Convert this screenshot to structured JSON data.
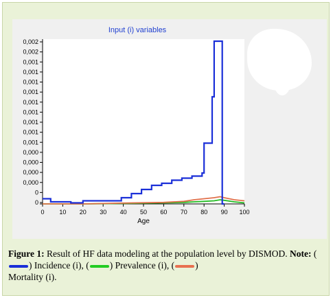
{
  "chart_data": {
    "type": "line",
    "title": "Input (i) variables",
    "xlabel": "Age",
    "ylabel": "",
    "xlim": [
      0,
      100
    ],
    "x_ticks": [
      "0",
      "10",
      "20",
      "30",
      "40",
      "50",
      "60",
      "70",
      "80",
      "90",
      "100"
    ],
    "y_ticks": [
      "0",
      "0",
      "0,000",
      "0,000",
      "0,000",
      "0,000",
      "0,001",
      "0,001",
      "0,001",
      "0,001",
      "0,001",
      "0,001",
      "0,001",
      "0,001",
      "0,001",
      "0,002",
      "0,002"
    ],
    "ylim": [
      0,
      0.0016
    ],
    "grid": false,
    "series": [
      {
        "color": "#1a2fd8",
        "x": [
          0,
          4,
          4,
          14,
          14,
          19,
          19,
          20,
          20,
          39,
          39,
          44,
          44,
          49,
          49,
          54,
          54,
          59,
          59,
          64,
          64,
          69,
          69,
          74,
          74,
          79,
          79,
          80,
          80,
          84,
          84,
          85,
          85,
          89,
          89,
          90,
          90
        ],
        "y": [
          5e-05,
          5e-05,
          2e-05,
          2e-05,
          1e-05,
          1e-05,
          1e-05,
          1e-05,
          3e-05,
          3e-05,
          6e-05,
          6e-05,
          0.0001,
          0.0001,
          0.00014,
          0.00014,
          0.00018,
          0.00018,
          0.0002,
          0.0002,
          0.00023,
          0.00023,
          0.00025,
          0.00025,
          0.00027,
          0.00027,
          0.0003,
          0.0003,
          0.00059,
          0.00059,
          0.00104,
          0.00104,
          0.00158,
          0.00158,
          0.0,
          0.0,
          0.0
        ]
      },
      {
        "color": "#22bb22",
        "x": [
          0,
          20,
          40,
          60,
          70,
          75,
          80,
          85,
          88,
          90,
          95,
          100
        ],
        "y": [
          0.0,
          0.0,
          5e-06,
          1e-05,
          1.5e-05,
          2e-05,
          2.5e-05,
          3e-05,
          4e-05,
          3.5e-05,
          2e-05,
          1e-05
        ]
      },
      {
        "color": "#e0704a",
        "x": [
          0,
          20,
          40,
          60,
          70,
          75,
          80,
          85,
          88,
          90,
          95,
          100
        ],
        "y": [
          0.0,
          0.0,
          8e-06,
          1.5e-05,
          2.5e-05,
          4e-05,
          5e-05,
          6e-05,
          7e-05,
          6e-05,
          4e-05,
          3e-05
        ]
      }
    ]
  },
  "caption": {
    "figure_label": "Figure 1:",
    "text1": " Result of HF data modeling at the population level by DISMOD. ",
    "note_label": "Note:",
    "incidence": " Incidence (i), (",
    "prevalence": " Prevalence (i), (",
    "mortality": " Mortality (i).",
    "open_paren": "(",
    "close_paren": ")",
    "incidence_color": "#1a2fd8",
    "prevalence_color": "#22cc22",
    "mortality_color": "#e87050"
  }
}
